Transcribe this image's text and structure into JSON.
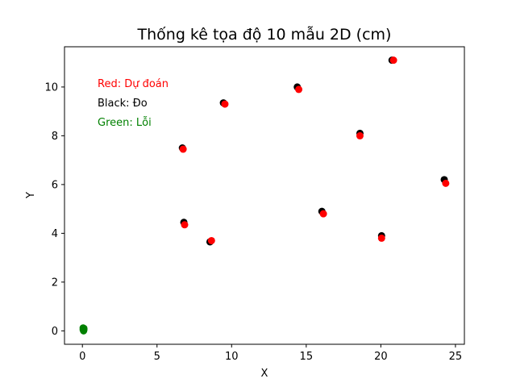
{
  "chart_data": {
    "type": "scatter",
    "title": "Thống kê tọa độ 10 mẫu 2D (cm)",
    "xlabel": "X",
    "ylabel": "Y",
    "xlim": [
      -1.2,
      25.6
    ],
    "ylim": [
      -0.55,
      11.65
    ],
    "xticks": [
      0,
      5,
      10,
      15,
      20,
      25
    ],
    "yticks": [
      0,
      2,
      4,
      6,
      8,
      10
    ],
    "grid": false,
    "series": [
      {
        "name": "Đo",
        "color": "#000000",
        "points": [
          {
            "x": 6.7,
            "y": 7.5
          },
          {
            "x": 6.8,
            "y": 4.45
          },
          {
            "x": 8.55,
            "y": 3.65
          },
          {
            "x": 9.45,
            "y": 9.35
          },
          {
            "x": 14.4,
            "y": 10.0
          },
          {
            "x": 16.05,
            "y": 4.9
          },
          {
            "x": 18.6,
            "y": 8.1
          },
          {
            "x": 20.05,
            "y": 3.9
          },
          {
            "x": 20.75,
            "y": 11.1
          },
          {
            "x": 24.25,
            "y": 6.2
          }
        ]
      },
      {
        "name": "Dự đoán",
        "color": "#ff0000",
        "points": [
          {
            "x": 6.75,
            "y": 7.45
          },
          {
            "x": 6.85,
            "y": 4.35
          },
          {
            "x": 8.65,
            "y": 3.7
          },
          {
            "x": 9.55,
            "y": 9.3
          },
          {
            "x": 14.5,
            "y": 9.9
          },
          {
            "x": 16.15,
            "y": 4.8
          },
          {
            "x": 18.6,
            "y": 8.0
          },
          {
            "x": 20.05,
            "y": 3.8
          },
          {
            "x": 20.85,
            "y": 11.1
          },
          {
            "x": 24.35,
            "y": 6.05
          }
        ]
      },
      {
        "name": "Lỗi",
        "color": "#008000",
        "points": [
          {
            "x": 0.05,
            "y": 0.05
          },
          {
            "x": 0.1,
            "y": 0.1
          },
          {
            "x": 0.08,
            "y": 0.0
          },
          {
            "x": 0.1,
            "y": 0.05
          },
          {
            "x": 0.05,
            "y": 0.12
          }
        ]
      }
    ],
    "annotations": [
      {
        "text": "Red: Dự đoán",
        "color": "#ff0000"
      },
      {
        "text": "Black: Đo",
        "color": "#000000"
      },
      {
        "text": "Green: Lỗi",
        "color": "#008000"
      }
    ]
  }
}
